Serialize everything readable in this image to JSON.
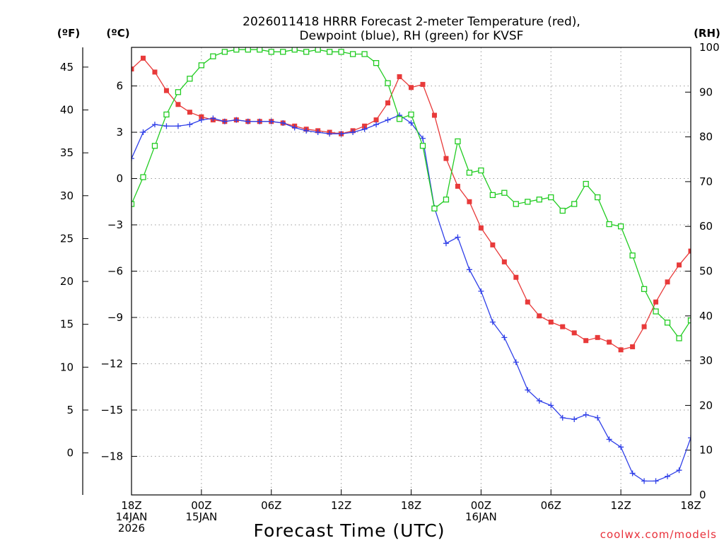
{
  "chart_data": {
    "type": "line",
    "title_lines": [
      "2026011418 HRRR Forecast 2-meter Temperature (red),",
      "Dewpoint (blue), RH (green) for KVSF"
    ],
    "xlabel": "Forecast Time (UTC)",
    "credit": "coolwx.com/models",
    "units": {
      "left_f": "(ºF)",
      "left_c": "(ºC)",
      "right": "(RH)"
    },
    "x_range_hours": [
      0,
      48
    ],
    "celsius_range": [
      -20.5,
      8.5
    ],
    "rh_range": [
      0,
      100
    ],
    "left_c_ticks": [
      6,
      3,
      0,
      -3,
      -6,
      -9,
      -12,
      -15,
      -18
    ],
    "left_c_tick_labels": [
      "6",
      "3",
      "0",
      "−3",
      "−6",
      "−9",
      "−12",
      "−15",
      "−18"
    ],
    "left_f_ticks": [
      45,
      40,
      35,
      30,
      25,
      20,
      15,
      10,
      5,
      0
    ],
    "right_rh_ticks": [
      100,
      90,
      80,
      70,
      60,
      50,
      40,
      30,
      20,
      10,
      0
    ],
    "x_ticks": [
      {
        "hour": 0,
        "lines": [
          "18Z",
          "14JAN",
          "2026"
        ]
      },
      {
        "hour": 6,
        "lines": [
          "00Z",
          "15JAN"
        ]
      },
      {
        "hour": 12,
        "lines": [
          "06Z"
        ]
      },
      {
        "hour": 18,
        "lines": [
          "12Z"
        ]
      },
      {
        "hour": 24,
        "lines": [
          "18Z"
        ]
      },
      {
        "hour": 30,
        "lines": [
          "00Z",
          "16JAN"
        ]
      },
      {
        "hour": 36,
        "lines": [
          "06Z"
        ]
      },
      {
        "hour": 42,
        "lines": [
          "12Z"
        ]
      },
      {
        "hour": 48,
        "lines": [
          "18Z"
        ]
      }
    ],
    "hours": [
      0,
      1,
      2,
      3,
      4,
      5,
      6,
      7,
      8,
      9,
      10,
      11,
      12,
      13,
      14,
      15,
      16,
      17,
      18,
      19,
      20,
      21,
      22,
      23,
      24,
      25,
      26,
      27,
      28,
      29,
      30,
      31,
      32,
      33,
      34,
      35,
      36,
      37,
      38,
      39,
      40,
      41,
      42,
      43,
      44,
      45,
      46,
      47,
      48
    ],
    "series": [
      {
        "name": "Temperature",
        "unit": "C",
        "color": "#e83a3a",
        "marker": "filled-square",
        "values": [
          7.1,
          7.8,
          6.9,
          5.7,
          4.8,
          4.3,
          4.0,
          3.8,
          3.7,
          3.8,
          3.7,
          3.7,
          3.7,
          3.6,
          3.4,
          3.2,
          3.1,
          3.0,
          2.9,
          3.1,
          3.4,
          3.8,
          4.9,
          6.6,
          5.9,
          6.1,
          4.1,
          1.3,
          -0.5,
          -1.5,
          -3.2,
          -4.3,
          -5.4,
          -6.4,
          -8.0,
          -8.9,
          -9.3,
          -9.6,
          -10.0,
          -10.5,
          -10.3,
          -10.6,
          -11.1,
          -10.9,
          -9.6,
          -8.0,
          -6.7,
          -5.6,
          -4.7
        ]
      },
      {
        "name": "Dewpoint",
        "unit": "C",
        "color": "#2f3fe8",
        "marker": "plus",
        "values": [
          1.3,
          3.0,
          3.5,
          3.4,
          3.4,
          3.5,
          3.8,
          3.9,
          3.7,
          3.8,
          3.7,
          3.7,
          3.7,
          3.6,
          3.3,
          3.1,
          3.0,
          2.9,
          2.9,
          3.0,
          3.2,
          3.5,
          3.8,
          4.1,
          3.6,
          2.6,
          -1.9,
          -4.2,
          -3.8,
          -5.9,
          -7.3,
          -9.3,
          -10.3,
          -11.9,
          -13.7,
          -14.4,
          -14.7,
          -15.5,
          -15.6,
          -15.3,
          -15.5,
          -16.9,
          -17.4,
          -19.1,
          -19.6,
          -19.6,
          -19.3,
          -18.9,
          -16.8
        ]
      },
      {
        "name": "Relative Humidity",
        "unit": "%",
        "color": "#22cc22",
        "marker": "open-square",
        "values": [
          65,
          71,
          78,
          85,
          90,
          93,
          96,
          98,
          99,
          99.5,
          99.5,
          99.5,
          99,
          99,
          99.5,
          99,
          99.5,
          99,
          99,
          98.5,
          98.5,
          96.5,
          92,
          84,
          85,
          78,
          64,
          66,
          79,
          72,
          72.5,
          67,
          67.5,
          65,
          65.5,
          66,
          66.5,
          63.5,
          65,
          69.5,
          66.5,
          60.5,
          60,
          53.5,
          46,
          41,
          38.5,
          35,
          39
        ]
      }
    ]
  }
}
